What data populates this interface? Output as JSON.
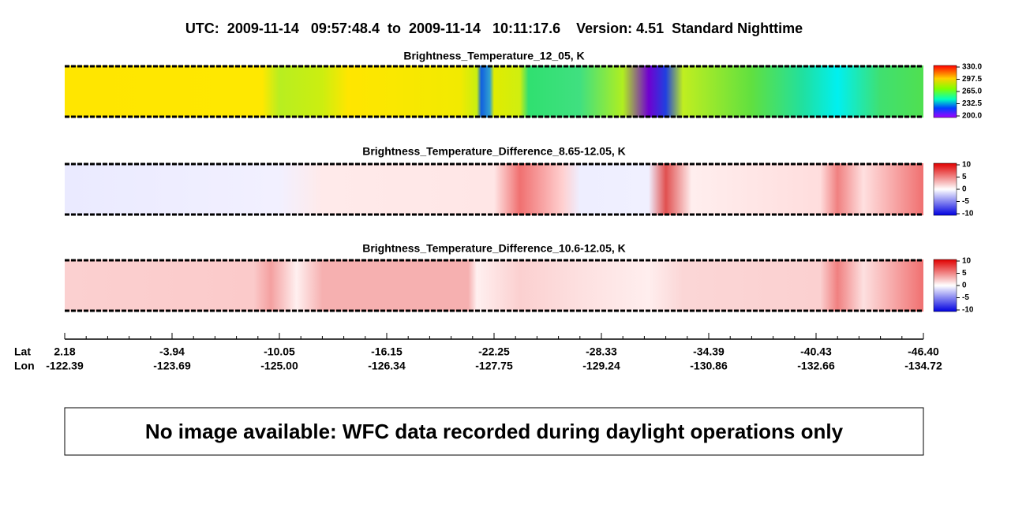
{
  "header": {
    "title": "UTC:  2009-11-14   09:57:48.4  to  2009-11-14   10:11:17.6    Version: 4.51  Standard Nighttime"
  },
  "panels": [
    {
      "title": "Brightness_Temperature_12_05, K",
      "colorbar_ticks": [
        "330.0",
        "297.5",
        "265.0",
        "232.5",
        "200.0"
      ]
    },
    {
      "title": "Brightness_Temperature_Difference_8.65-12.05, K",
      "colorbar_ticks": [
        "10",
        "5",
        "0",
        "-5",
        "-10"
      ]
    },
    {
      "title": "Brightness_Temperature_Difference_10.6-12.05, K",
      "colorbar_ticks": [
        "10",
        "5",
        "0",
        "-5",
        "-10"
      ]
    }
  ],
  "axis": {
    "lat_label": "Lat",
    "lon_label": "Lon",
    "lat": [
      "2.18",
      "-3.94",
      "-10.05",
      "-16.15",
      "-22.25",
      "-28.33",
      "-34.39",
      "-40.43",
      "-46.40"
    ],
    "lon": [
      "-122.39",
      "-123.69",
      "-125.00",
      "-126.34",
      "-127.75",
      "-129.24",
      "-130.86",
      "-132.66",
      "-134.72"
    ]
  },
  "message": "No image available: WFC data recorded during daylight operations only"
}
